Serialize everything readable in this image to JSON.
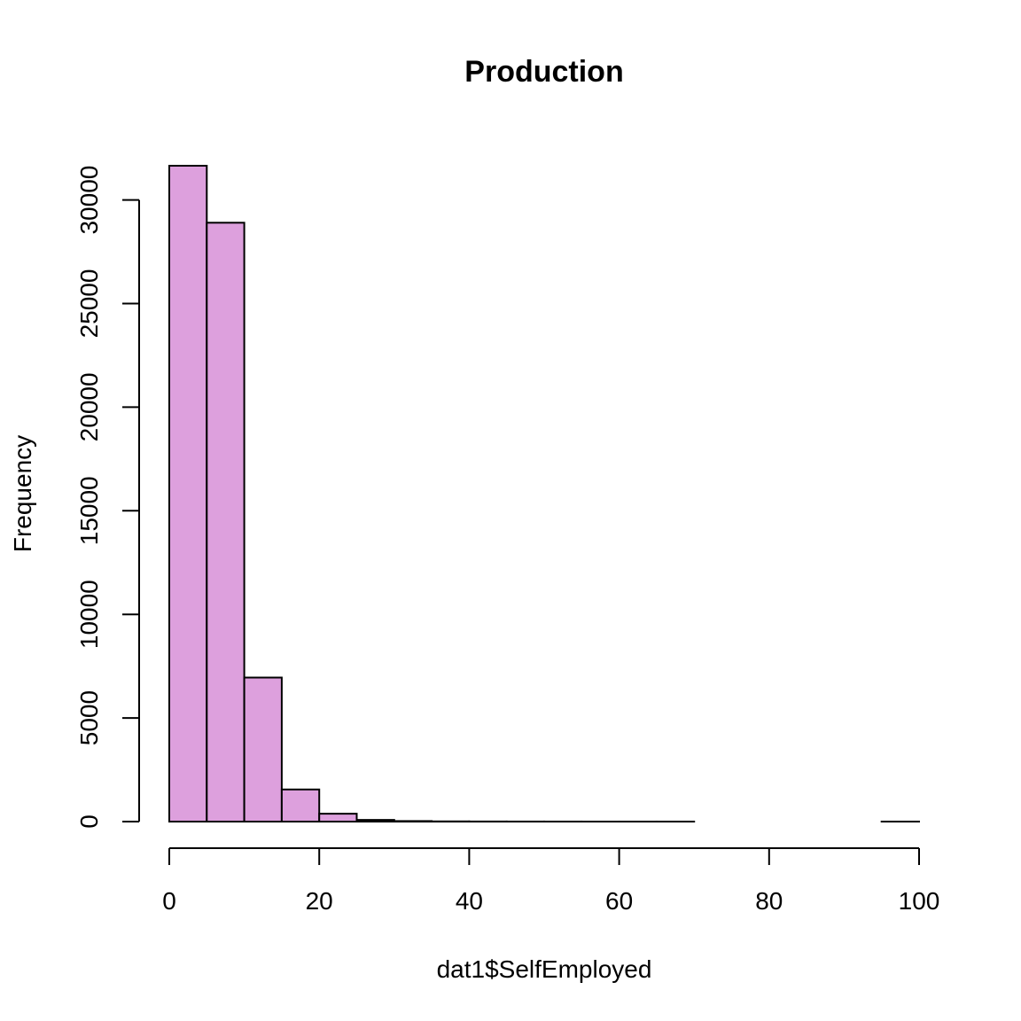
{
  "chart_data": {
    "type": "bar",
    "title": "Production",
    "xlabel": "dat1$SelfEmployed",
    "ylabel": "Frequency",
    "xlim": [
      0,
      100
    ],
    "ylim": [
      0,
      31650
    ],
    "bin_edges": [
      0,
      5,
      10,
      15,
      20,
      25,
      30,
      35,
      40,
      45,
      50,
      55,
      60,
      65,
      70,
      75,
      80,
      85,
      90,
      95,
      100
    ],
    "values": [
      31650,
      28900,
      6950,
      1550,
      380,
      80,
      25,
      10,
      5,
      3,
      2,
      1,
      1,
      1,
      0,
      0,
      0,
      0,
      0,
      1
    ],
    "x_ticks": [
      0,
      20,
      40,
      60,
      80,
      100
    ],
    "x_tick_labels": [
      "0",
      "20",
      "40",
      "60",
      "80",
      "100"
    ],
    "y_ticks": [
      0,
      5000,
      10000,
      15000,
      20000,
      25000,
      30000
    ],
    "y_tick_labels": [
      "0",
      "5000",
      "10000",
      "15000",
      "20000",
      "25000",
      "30000"
    ],
    "bar_color": "#DDA0DD",
    "grid": false,
    "legend": "none"
  }
}
